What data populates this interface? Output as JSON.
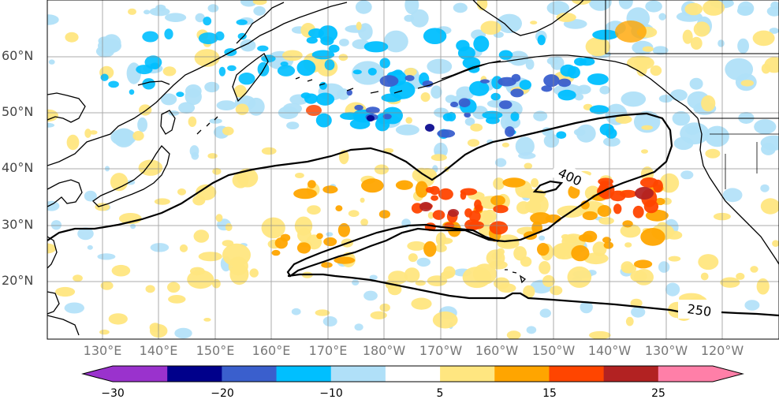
{
  "map": {
    "latitude_labels": [
      "60°N",
      "50°N",
      "40°N",
      "30°N",
      "20°N"
    ],
    "longitude_labels": [
      "130°E",
      "140°E",
      "150°E",
      "160°E",
      "170°E",
      "180°W",
      "170°W",
      "160°W",
      "150°W",
      "140°W",
      "130°W",
      "120°W"
    ],
    "contour_labels": [
      "400",
      "250"
    ]
  },
  "colorbar": {
    "tick_labels": [
      "−30",
      "−20",
      "−10",
      "5",
      "15",
      "25"
    ],
    "colors": [
      "#9a32cd",
      "#00008b",
      "#3a5fcd",
      "#00bfff",
      "#b0e0f8",
      "#ffffff",
      "#ffe680",
      "#ffa500",
      "#ff4500",
      "#b22222",
      "#ff7fa8"
    ]
  }
}
